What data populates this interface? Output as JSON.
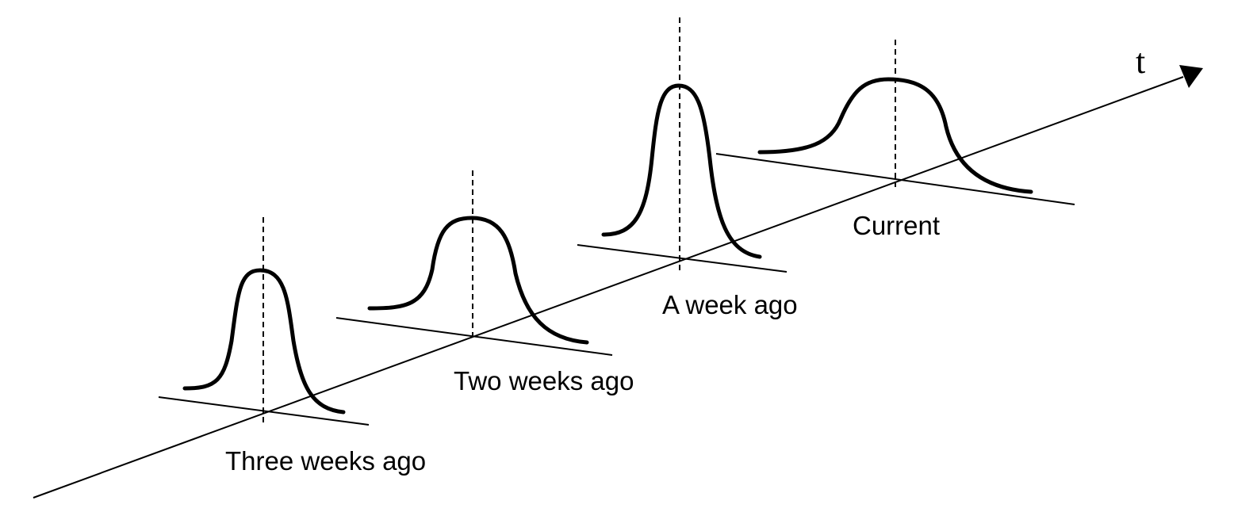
{
  "diagram": {
    "axis": {
      "label": "t"
    },
    "snapshots": [
      {
        "label": "Three weeks ago"
      },
      {
        "label": "Two weeks ago"
      },
      {
        "label": "A week ago"
      },
      {
        "label": "Current"
      }
    ]
  }
}
